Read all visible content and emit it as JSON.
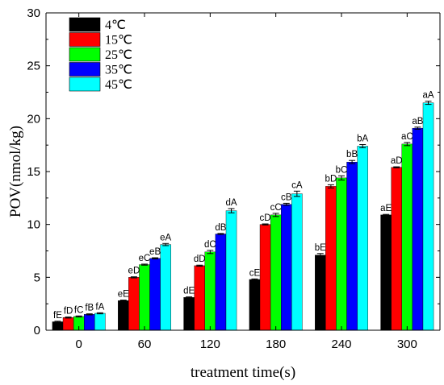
{
  "chart_data": {
    "type": "bar",
    "title": "",
    "xlabel": "treatment  time(s)",
    "ylabel": "POV(nmol/kg)",
    "ylim": [
      0,
      30
    ],
    "yticks": [
      0,
      5,
      10,
      15,
      20,
      25,
      30
    ],
    "categories": [
      "0",
      "60",
      "120",
      "180",
      "240",
      "300"
    ],
    "legend_position": "top-left",
    "grid": false,
    "series": [
      {
        "name": "4℃",
        "color": "#000000",
        "values": [
          0.8,
          2.8,
          3.1,
          4.8,
          7.1,
          10.9
        ],
        "labels": [
          "fE",
          "eE",
          "dE",
          "cE",
          "bE",
          "aE"
        ]
      },
      {
        "name": "15℃",
        "color": "#ff0000",
        "values": [
          1.2,
          5.0,
          6.1,
          10.0,
          13.6,
          15.4
        ],
        "labels": [
          "fD",
          "eD",
          "dD",
          "cD",
          "bD",
          "aD"
        ]
      },
      {
        "name": "25℃",
        "color": "#00ff00",
        "values": [
          1.3,
          6.2,
          7.4,
          10.9,
          14.4,
          17.6
        ],
        "labels": [
          "fC",
          "eC",
          "dC",
          "cC",
          "bC",
          "aC"
        ]
      },
      {
        "name": "35℃",
        "color": "#0000ff",
        "values": [
          1.5,
          6.8,
          9.1,
          11.9,
          15.9,
          19.1
        ],
        "labels": [
          "fB",
          "eB",
          "dB",
          "cB",
          "bB",
          "aB"
        ]
      },
      {
        "name": "45℃",
        "color": "#00ffff",
        "values": [
          1.6,
          8.1,
          11.3,
          12.9,
          17.4,
          21.5
        ],
        "labels": [
          "fA",
          "eA",
          "dA",
          "cA",
          "bA",
          "aA"
        ]
      }
    ],
    "error_bars": [
      [
        0.05,
        0.05,
        0.05,
        0.05,
        0.15,
        0.05
      ],
      [
        0.05,
        0.05,
        0.05,
        0.05,
        0.15,
        0.05
      ],
      [
        0.05,
        0.05,
        0.15,
        0.15,
        0.2,
        0.15
      ],
      [
        0.05,
        0.05,
        0.05,
        0.1,
        0.15,
        0.1
      ],
      [
        0.05,
        0.1,
        0.2,
        0.25,
        0.15,
        0.15
      ]
    ]
  }
}
